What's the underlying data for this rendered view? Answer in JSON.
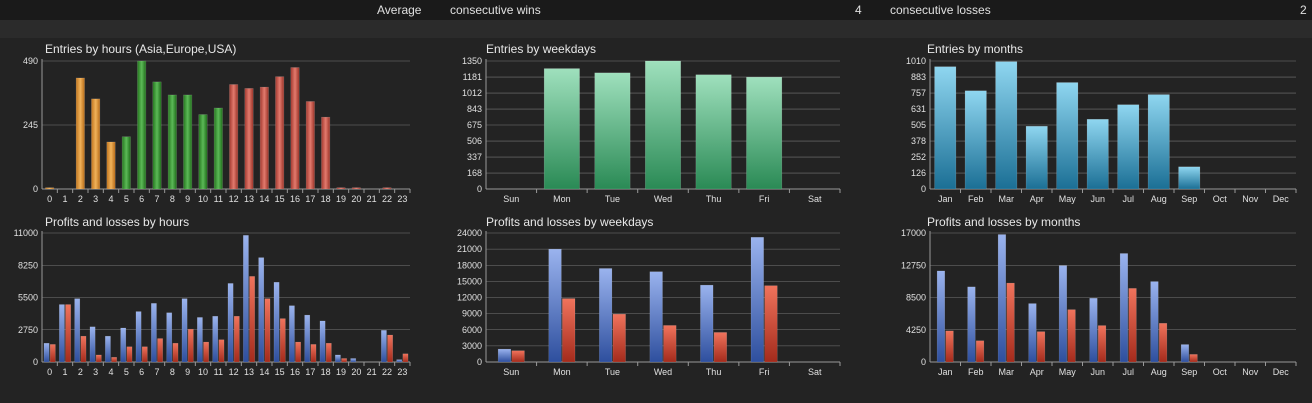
{
  "header": {
    "average_label": "Average",
    "wins_label": "consecutive wins",
    "wins_value": "4",
    "losses_label": "consecutive losses",
    "losses_value": "2"
  },
  "colors": {
    "orange": "#e49a3e",
    "green": "#3f9d3a",
    "red": "#c9554a",
    "teal_green": "#3aa571",
    "blue": "#2d8fb7",
    "profit_blue": "#5476c6",
    "loss_red": "#c43e2c"
  },
  "chart_data": [
    {
      "id": "entries_hours",
      "type": "bar",
      "title": "Entries by hours (Asia,Europe,USA)",
      "categories": [
        "0",
        "1",
        "2",
        "3",
        "4",
        "5",
        "6",
        "7",
        "8",
        "9",
        "10",
        "11",
        "12",
        "13",
        "14",
        "15",
        "16",
        "17",
        "18",
        "19",
        "20",
        "21",
        "22",
        "23"
      ],
      "values": [
        5,
        0,
        425,
        345,
        180,
        200,
        490,
        410,
        360,
        360,
        285,
        310,
        400,
        385,
        390,
        430,
        465,
        335,
        275,
        5,
        5,
        0,
        5,
        0
      ],
      "color_groups": [
        "orange",
        "orange",
        "orange",
        "orange",
        "orange",
        "green",
        "green",
        "green",
        "green",
        "green",
        "green",
        "green",
        "red",
        "red",
        "red",
        "red",
        "red",
        "red",
        "red",
        "red",
        "red",
        "red",
        "red",
        "red"
      ],
      "yticks": [
        0,
        245,
        490
      ],
      "ylim": [
        0,
        490
      ]
    },
    {
      "id": "entries_weekdays",
      "type": "bar",
      "title": "Entries by weekdays",
      "categories": [
        "Sun",
        "Mon",
        "Tue",
        "Wed",
        "Thu",
        "Fri",
        "Sat"
      ],
      "values": [
        0,
        1270,
        1225,
        1350,
        1205,
        1180,
        0
      ],
      "yticks": [
        0,
        168,
        337,
        506,
        675,
        843,
        1012,
        1181,
        1350
      ],
      "ylim": [
        0,
        1350
      ]
    },
    {
      "id": "entries_months",
      "type": "bar",
      "title": "Entries by months",
      "categories": [
        "Jan",
        "Feb",
        "Mar",
        "Apr",
        "May",
        "Jun",
        "Jul",
        "Aug",
        "Sep",
        "Oct",
        "Nov",
        "Dec"
      ],
      "values": [
        965,
        775,
        1005,
        495,
        840,
        550,
        665,
        745,
        175,
        0,
        0,
        0
      ],
      "yticks": [
        0,
        126,
        252,
        378,
        505,
        631,
        757,
        883,
        1010
      ],
      "ylim": [
        0,
        1010
      ]
    },
    {
      "id": "pl_hours",
      "type": "bar",
      "title": "Profits and losses by hours",
      "categories": [
        "0",
        "1",
        "2",
        "3",
        "4",
        "5",
        "6",
        "7",
        "8",
        "9",
        "10",
        "11",
        "12",
        "13",
        "14",
        "15",
        "16",
        "17",
        "18",
        "19",
        "20",
        "21",
        "22",
        "23"
      ],
      "series": [
        {
          "values": [
            1600,
            4900,
            5400,
            3000,
            2200,
            2900,
            4300,
            5000,
            4200,
            5400,
            3800,
            3900,
            6700,
            10800,
            8900,
            6800,
            4800,
            4000,
            3500,
            600,
            300,
            0,
            2700,
            200
          ]
        },
        {
          "values": [
            1500,
            4900,
            2200,
            600,
            400,
            1300,
            1300,
            2000,
            1600,
            2800,
            1700,
            1900,
            3900,
            7300,
            5400,
            3700,
            1700,
            1500,
            1600,
            300,
            0,
            0,
            2300,
            700
          ]
        }
      ],
      "yticks": [
        0,
        2750,
        5500,
        8250,
        11000
      ],
      "ylim": [
        0,
        11000
      ]
    },
    {
      "id": "pl_weekdays",
      "type": "bar",
      "title": "Profits and losses by weekdays",
      "categories": [
        "Sun",
        "Mon",
        "Tue",
        "Wed",
        "Thu",
        "Fri",
        "Sat"
      ],
      "series": [
        {
          "values": [
            2400,
            21000,
            17400,
            16800,
            14300,
            23200,
            0
          ]
        },
        {
          "values": [
            2100,
            11800,
            8900,
            6800,
            5500,
            14200,
            0
          ]
        }
      ],
      "yticks": [
        0,
        3000,
        6000,
        9000,
        12000,
        15000,
        18000,
        21000,
        24000
      ],
      "ylim": [
        0,
        24000
      ]
    },
    {
      "id": "pl_months",
      "type": "bar",
      "title": "Profits and losses by months",
      "categories": [
        "Jan",
        "Feb",
        "Mar",
        "Apr",
        "May",
        "Jun",
        "Jul",
        "Aug",
        "Sep",
        "Oct",
        "Nov",
        "Dec"
      ],
      "series": [
        {
          "values": [
            12000,
            9900,
            16800,
            7700,
            12700,
            8400,
            14300,
            10600,
            2300,
            0,
            0,
            0
          ]
        },
        {
          "values": [
            4100,
            2800,
            10400,
            4000,
            6900,
            4800,
            9700,
            5100,
            1000,
            0,
            0,
            0
          ]
        }
      ],
      "yticks": [
        0,
        4250,
        8500,
        12750,
        17000
      ],
      "ylim": [
        0,
        17000
      ]
    }
  ]
}
